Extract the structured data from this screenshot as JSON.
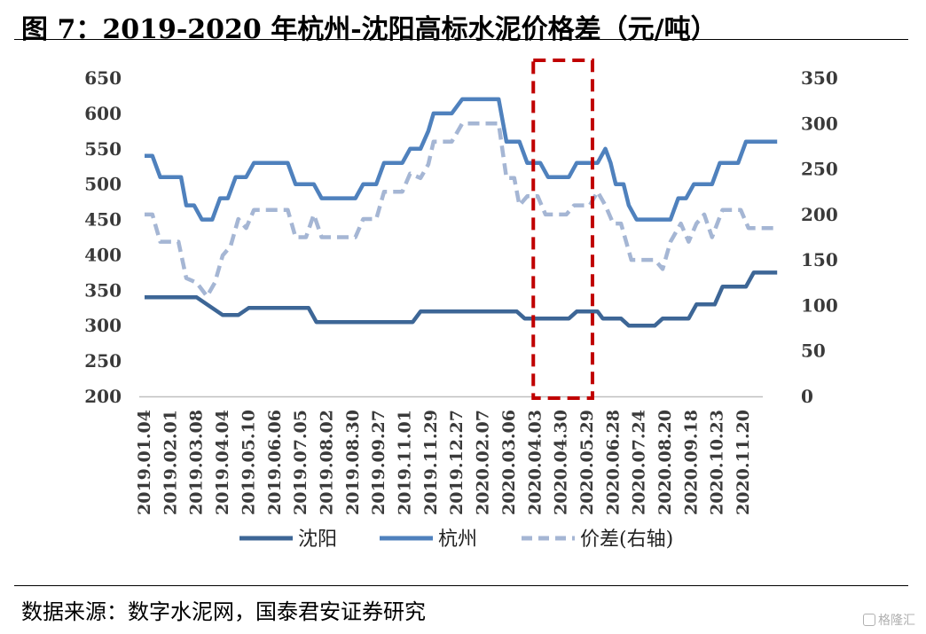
{
  "title": "图 7：2019-2020 年杭州-沈阳高标水泥价格差（元/吨）",
  "source": "数据来源：数字水泥网，国泰君安证券研究",
  "watermark": "格隆汇",
  "colors": {
    "shenyang": "#3d6696",
    "hangzhou": "#4f81bd",
    "spread": "#a5b6d4",
    "highlight_box": "#c00000"
  },
  "chart_data": {
    "type": "line",
    "title": "",
    "xlabel": "",
    "ylabel": "",
    "left_axis": {
      "ylim": [
        200,
        650
      ],
      "ticks": [
        200,
        250,
        300,
        350,
        400,
        450,
        500,
        550,
        600,
        650
      ]
    },
    "right_axis": {
      "ylim": [
        0,
        350
      ],
      "ticks": [
        0,
        50,
        100,
        150,
        200,
        250,
        300,
        350
      ]
    },
    "x_ticks": [
      "2019.01.04",
      "2019.02.01",
      "2019.03.08",
      "2019.04.04",
      "2019.05.10",
      "2019.06.06",
      "2019.07.05",
      "2019.08.02",
      "2019.08.30",
      "2019.09.27",
      "2019.11.01",
      "2019.11.29",
      "2019.12.27",
      "2020.02.07",
      "2020.03.06",
      "2020.04.03",
      "2020.04.30",
      "2020.05.29",
      "2020.06.28",
      "2020.07.24",
      "2020.08.20",
      "2020.09.18",
      "2020.10.23",
      "2020.11.20"
    ],
    "grid": false,
    "legend_position": "bottom",
    "highlight_range": [
      "2020.04.03",
      "2020.05.29"
    ],
    "series": [
      {
        "name": "沈阳",
        "axis": "left",
        "style": "solid",
        "points": [
          [
            0,
            340
          ],
          [
            2,
            340
          ],
          [
            2.6,
            325
          ],
          [
            3,
            315
          ],
          [
            3.6,
            315
          ],
          [
            4,
            325
          ],
          [
            6.3,
            325
          ],
          [
            6.6,
            305
          ],
          [
            10.3,
            305
          ],
          [
            10.6,
            320
          ],
          [
            14.3,
            320
          ],
          [
            14.6,
            310
          ],
          [
            16.3,
            310
          ],
          [
            16.6,
            320
          ],
          [
            17.4,
            320
          ],
          [
            17.6,
            310
          ],
          [
            18.3,
            310
          ],
          [
            18.6,
            300
          ],
          [
            19.6,
            300
          ],
          [
            19.9,
            310
          ],
          [
            20.9,
            310
          ],
          [
            21.2,
            330
          ],
          [
            21.9,
            330
          ],
          [
            22.2,
            355
          ],
          [
            23.1,
            355
          ],
          [
            23.4,
            375
          ],
          [
            24.3,
            375
          ]
        ]
      },
      {
        "name": "杭州",
        "axis": "left",
        "style": "solid",
        "points": [
          [
            0,
            540
          ],
          [
            0.3,
            540
          ],
          [
            0.6,
            510
          ],
          [
            1.4,
            510
          ],
          [
            1.6,
            470
          ],
          [
            1.9,
            470
          ],
          [
            2.2,
            450
          ],
          [
            2.6,
            450
          ],
          [
            2.9,
            480
          ],
          [
            3.2,
            480
          ],
          [
            3.5,
            510
          ],
          [
            3.9,
            510
          ],
          [
            4.2,
            530
          ],
          [
            5.5,
            530
          ],
          [
            5.8,
            500
          ],
          [
            6.5,
            500
          ],
          [
            6.8,
            480
          ],
          [
            8.1,
            480
          ],
          [
            8.4,
            500
          ],
          [
            8.9,
            500
          ],
          [
            9.2,
            530
          ],
          [
            9.9,
            530
          ],
          [
            10.2,
            550
          ],
          [
            10.6,
            550
          ],
          [
            10.9,
            575
          ],
          [
            11.1,
            600
          ],
          [
            11.8,
            600
          ],
          [
            12.2,
            620
          ],
          [
            13.6,
            620
          ],
          [
            13.9,
            560
          ],
          [
            14.4,
            560
          ],
          [
            14.7,
            530
          ],
          [
            15.2,
            530
          ],
          [
            15.5,
            510
          ],
          [
            16.3,
            510
          ],
          [
            16.6,
            530
          ],
          [
            17.4,
            530
          ],
          [
            17.7,
            550
          ],
          [
            17.9,
            530
          ],
          [
            18.1,
            500
          ],
          [
            18.4,
            500
          ],
          [
            18.6,
            470
          ],
          [
            18.9,
            450
          ],
          [
            20.2,
            450
          ],
          [
            20.5,
            480
          ],
          [
            20.8,
            480
          ],
          [
            21.1,
            500
          ],
          [
            21.8,
            500
          ],
          [
            22.1,
            530
          ],
          [
            22.8,
            530
          ],
          [
            23.1,
            560
          ],
          [
            24.3,
            560
          ]
        ]
      },
      {
        "name": "价差(右轴)",
        "axis": "right",
        "style": "dashed",
        "points": [
          [
            0,
            200
          ],
          [
            0.3,
            200
          ],
          [
            0.6,
            170
          ],
          [
            1.3,
            170
          ],
          [
            1.6,
            130
          ],
          [
            2.0,
            125
          ],
          [
            2.4,
            110
          ],
          [
            2.7,
            125
          ],
          [
            3.0,
            155
          ],
          [
            3.3,
            165
          ],
          [
            3.6,
            195
          ],
          [
            3.9,
            185
          ],
          [
            4.2,
            205
          ],
          [
            5.5,
            205
          ],
          [
            5.8,
            175
          ],
          [
            6.2,
            175
          ],
          [
            6.5,
            200
          ],
          [
            6.8,
            175
          ],
          [
            8.1,
            175
          ],
          [
            8.4,
            195
          ],
          [
            8.9,
            195
          ],
          [
            9.2,
            225
          ],
          [
            9.9,
            225
          ],
          [
            10.2,
            245
          ],
          [
            10.6,
            240
          ],
          [
            10.9,
            255
          ],
          [
            11.1,
            280
          ],
          [
            11.8,
            280
          ],
          [
            12.2,
            300
          ],
          [
            13.6,
            300
          ],
          [
            13.9,
            240
          ],
          [
            14.2,
            240
          ],
          [
            14.4,
            210
          ],
          [
            14.7,
            220
          ],
          [
            15.1,
            220
          ],
          [
            15.4,
            200
          ],
          [
            16.2,
            200
          ],
          [
            16.5,
            210
          ],
          [
            17.1,
            210
          ],
          [
            17.4,
            225
          ],
          [
            17.7,
            210
          ],
          [
            18.0,
            190
          ],
          [
            18.3,
            190
          ],
          [
            18.7,
            150
          ],
          [
            19.6,
            150
          ],
          [
            19.9,
            140
          ],
          [
            20.2,
            170
          ],
          [
            20.6,
            190
          ],
          [
            20.9,
            170
          ],
          [
            21.2,
            190
          ],
          [
            21.5,
            200
          ],
          [
            21.8,
            175
          ],
          [
            22.2,
            205
          ],
          [
            22.9,
            205
          ],
          [
            23.2,
            185
          ],
          [
            24.3,
            185
          ]
        ]
      }
    ]
  }
}
